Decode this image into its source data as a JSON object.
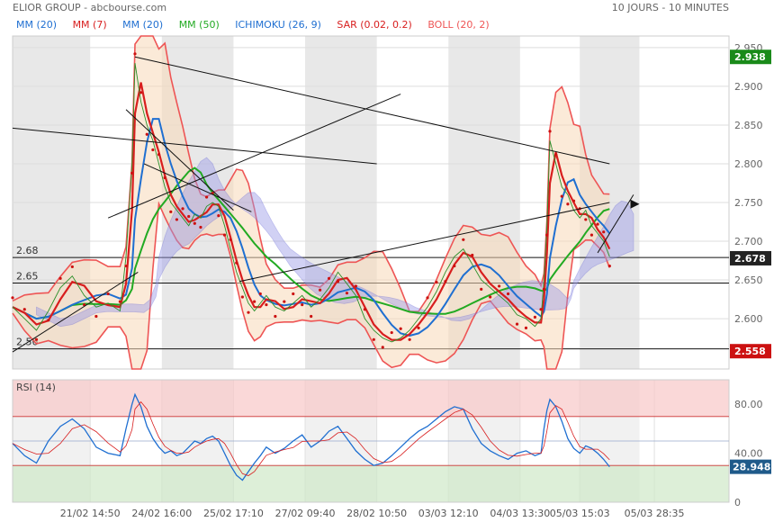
{
  "header": {
    "title": "ELIOR GROUP - abcbourse.com",
    "period": "10 JOURS - 10 MINUTES"
  },
  "legend": [
    {
      "label": "MM (20)",
      "color": "#1f6fd1"
    },
    {
      "label": "MM (7)",
      "color": "#d81e1e"
    },
    {
      "label": "MM (20)",
      "color": "#1f6fd1"
    },
    {
      "label": "MM (50)",
      "color": "#22aa22"
    },
    {
      "label": "ICHIMOKU (26, 9)",
      "color": "#1f6fd1"
    },
    {
      "label": "SAR (0.02, 0.2)",
      "color": "#d81e1e"
    },
    {
      "label": "BOLL (20, 2)",
      "color": "#ee5555"
    }
  ],
  "rsi_label": "RSI (14)",
  "chart_data": [
    {
      "type": "line",
      "panel": "price",
      "x_labels": [
        "21/02 14:50",
        "24/02 16:00",
        "25/02 17:10",
        "27/02 09:40",
        "28/02 10:50",
        "03/03 12:10",
        "04/03 13:30",
        "05/03 15:03",
        "05/03 28:35"
      ],
      "y_ticks": [
        2.6,
        2.65,
        2.7,
        2.75,
        2.8,
        2.85,
        2.9,
        2.95
      ],
      "y_tick_labels": [
        "2.600",
        "2.650",
        "2.700",
        "2.750",
        "2.800",
        "2.850",
        "2.900",
        "2.950"
      ],
      "ylim": [
        2.535,
        2.965
      ],
      "price_badges": [
        {
          "label": "2.938",
          "value": 2.938,
          "color": "#1a8a1a"
        },
        {
          "label": "2.678",
          "value": 2.678,
          "color": "#222222"
        },
        {
          "label": "2.558",
          "value": 2.558,
          "color": "#cc1111"
        }
      ],
      "horizontal_levels": [
        {
          "label": "2.68",
          "value": 2.679
        },
        {
          "label": "2.65",
          "value": 2.646
        },
        {
          "label": "2.56",
          "value": 2.561
        }
      ],
      "price_series": [
        [
          0,
          2.615
        ],
        [
          4,
          2.6
        ],
        [
          8,
          2.585
        ],
        [
          12,
          2.61
        ],
        [
          16,
          2.64
        ],
        [
          20,
          2.655
        ],
        [
          24,
          2.63
        ],
        [
          28,
          2.615
        ],
        [
          32,
          2.62
        ],
        [
          36,
          2.61
        ],
        [
          38,
          2.68
        ],
        [
          40,
          2.8
        ],
        [
          41,
          2.93
        ],
        [
          43,
          2.88
        ],
        [
          45,
          2.85
        ],
        [
          47,
          2.83
        ],
        [
          49,
          2.8
        ],
        [
          51,
          2.77
        ],
        [
          53,
          2.75
        ],
        [
          55,
          2.74
        ],
        [
          57,
          2.73
        ],
        [
          59,
          2.72
        ],
        [
          61,
          2.735
        ],
        [
          63,
          2.73
        ],
        [
          65,
          2.745
        ],
        [
          67,
          2.75
        ],
        [
          69,
          2.745
        ],
        [
          71,
          2.72
        ],
        [
          73,
          2.69
        ],
        [
          75,
          2.66
        ],
        [
          77,
          2.64
        ],
        [
          79,
          2.62
        ],
        [
          81,
          2.61
        ],
        [
          83,
          2.62
        ],
        [
          85,
          2.63
        ],
        [
          88,
          2.615
        ],
        [
          91,
          2.61
        ],
        [
          94,
          2.62
        ],
        [
          97,
          2.63
        ],
        [
          100,
          2.615
        ],
        [
          103,
          2.625
        ],
        [
          106,
          2.64
        ],
        [
          109,
          2.66
        ],
        [
          112,
          2.645
        ],
        [
          115,
          2.63
        ],
        [
          118,
          2.6
        ],
        [
          121,
          2.585
        ],
        [
          124,
          2.575
        ],
        [
          127,
          2.57
        ],
        [
          130,
          2.575
        ],
        [
          133,
          2.585
        ],
        [
          136,
          2.6
        ],
        [
          139,
          2.615
        ],
        [
          142,
          2.635
        ],
        [
          145,
          2.66
        ],
        [
          148,
          2.68
        ],
        [
          151,
          2.69
        ],
        [
          154,
          2.67
        ],
        [
          157,
          2.65
        ],
        [
          160,
          2.64
        ],
        [
          163,
          2.63
        ],
        [
          166,
          2.62
        ],
        [
          169,
          2.605
        ],
        [
          172,
          2.6
        ],
        [
          175,
          2.59
        ],
        [
          177,
          2.6
        ],
        [
          178,
          2.65
        ],
        [
          179,
          2.72
        ],
        [
          180,
          2.83
        ],
        [
          182,
          2.8
        ],
        [
          184,
          2.77
        ],
        [
          186,
          2.76
        ],
        [
          188,
          2.74
        ],
        [
          190,
          2.73
        ],
        [
          192,
          2.74
        ],
        [
          194,
          2.72
        ],
        [
          196,
          2.71
        ],
        [
          198,
          2.7
        ],
        [
          200,
          2.68
        ]
      ],
      "rsi_panel": {
        "y_ticks": [
          0,
          40,
          80
        ],
        "y_tick_labels": [
          "0",
          "40.00",
          "80.00"
        ],
        "levels": [
          30,
          50,
          70
        ],
        "current_label": "28.948",
        "current_value": 28.948,
        "values": [
          [
            0,
            48
          ],
          [
            4,
            38
          ],
          [
            8,
            32
          ],
          [
            12,
            50
          ],
          [
            16,
            62
          ],
          [
            20,
            68
          ],
          [
            24,
            60
          ],
          [
            28,
            45
          ],
          [
            32,
            40
          ],
          [
            36,
            38
          ],
          [
            38,
            60
          ],
          [
            40,
            80
          ],
          [
            41,
            88
          ],
          [
            43,
            78
          ],
          [
            45,
            62
          ],
          [
            47,
            52
          ],
          [
            49,
            45
          ],
          [
            51,
            40
          ],
          [
            53,
            42
          ],
          [
            55,
            38
          ],
          [
            57,
            40
          ],
          [
            59,
            45
          ],
          [
            61,
            50
          ],
          [
            63,
            48
          ],
          [
            65,
            52
          ],
          [
            67,
            54
          ],
          [
            69,
            50
          ],
          [
            71,
            40
          ],
          [
            73,
            30
          ],
          [
            75,
            22
          ],
          [
            77,
            18
          ],
          [
            79,
            25
          ],
          [
            81,
            32
          ],
          [
            83,
            38
          ],
          [
            85,
            45
          ],
          [
            88,
            40
          ],
          [
            91,
            44
          ],
          [
            94,
            50
          ],
          [
            97,
            55
          ],
          [
            100,
            45
          ],
          [
            103,
            50
          ],
          [
            106,
            58
          ],
          [
            109,
            62
          ],
          [
            112,
            52
          ],
          [
            115,
            42
          ],
          [
            118,
            35
          ],
          [
            121,
            30
          ],
          [
            124,
            32
          ],
          [
            127,
            38
          ],
          [
            130,
            45
          ],
          [
            133,
            52
          ],
          [
            136,
            58
          ],
          [
            139,
            62
          ],
          [
            142,
            68
          ],
          [
            145,
            74
          ],
          [
            148,
            78
          ],
          [
            151,
            76
          ],
          [
            154,
            60
          ],
          [
            157,
            48
          ],
          [
            160,
            42
          ],
          [
            163,
            38
          ],
          [
            166,
            35
          ],
          [
            169,
            40
          ],
          [
            172,
            42
          ],
          [
            175,
            38
          ],
          [
            177,
            40
          ],
          [
            178,
            60
          ],
          [
            179,
            75
          ],
          [
            180,
            84
          ],
          [
            182,
            78
          ],
          [
            184,
            66
          ],
          [
            186,
            52
          ],
          [
            188,
            44
          ],
          [
            190,
            40
          ],
          [
            192,
            46
          ],
          [
            194,
            44
          ],
          [
            196,
            40
          ],
          [
            198,
            35
          ],
          [
            200,
            29
          ]
        ]
      }
    }
  ]
}
